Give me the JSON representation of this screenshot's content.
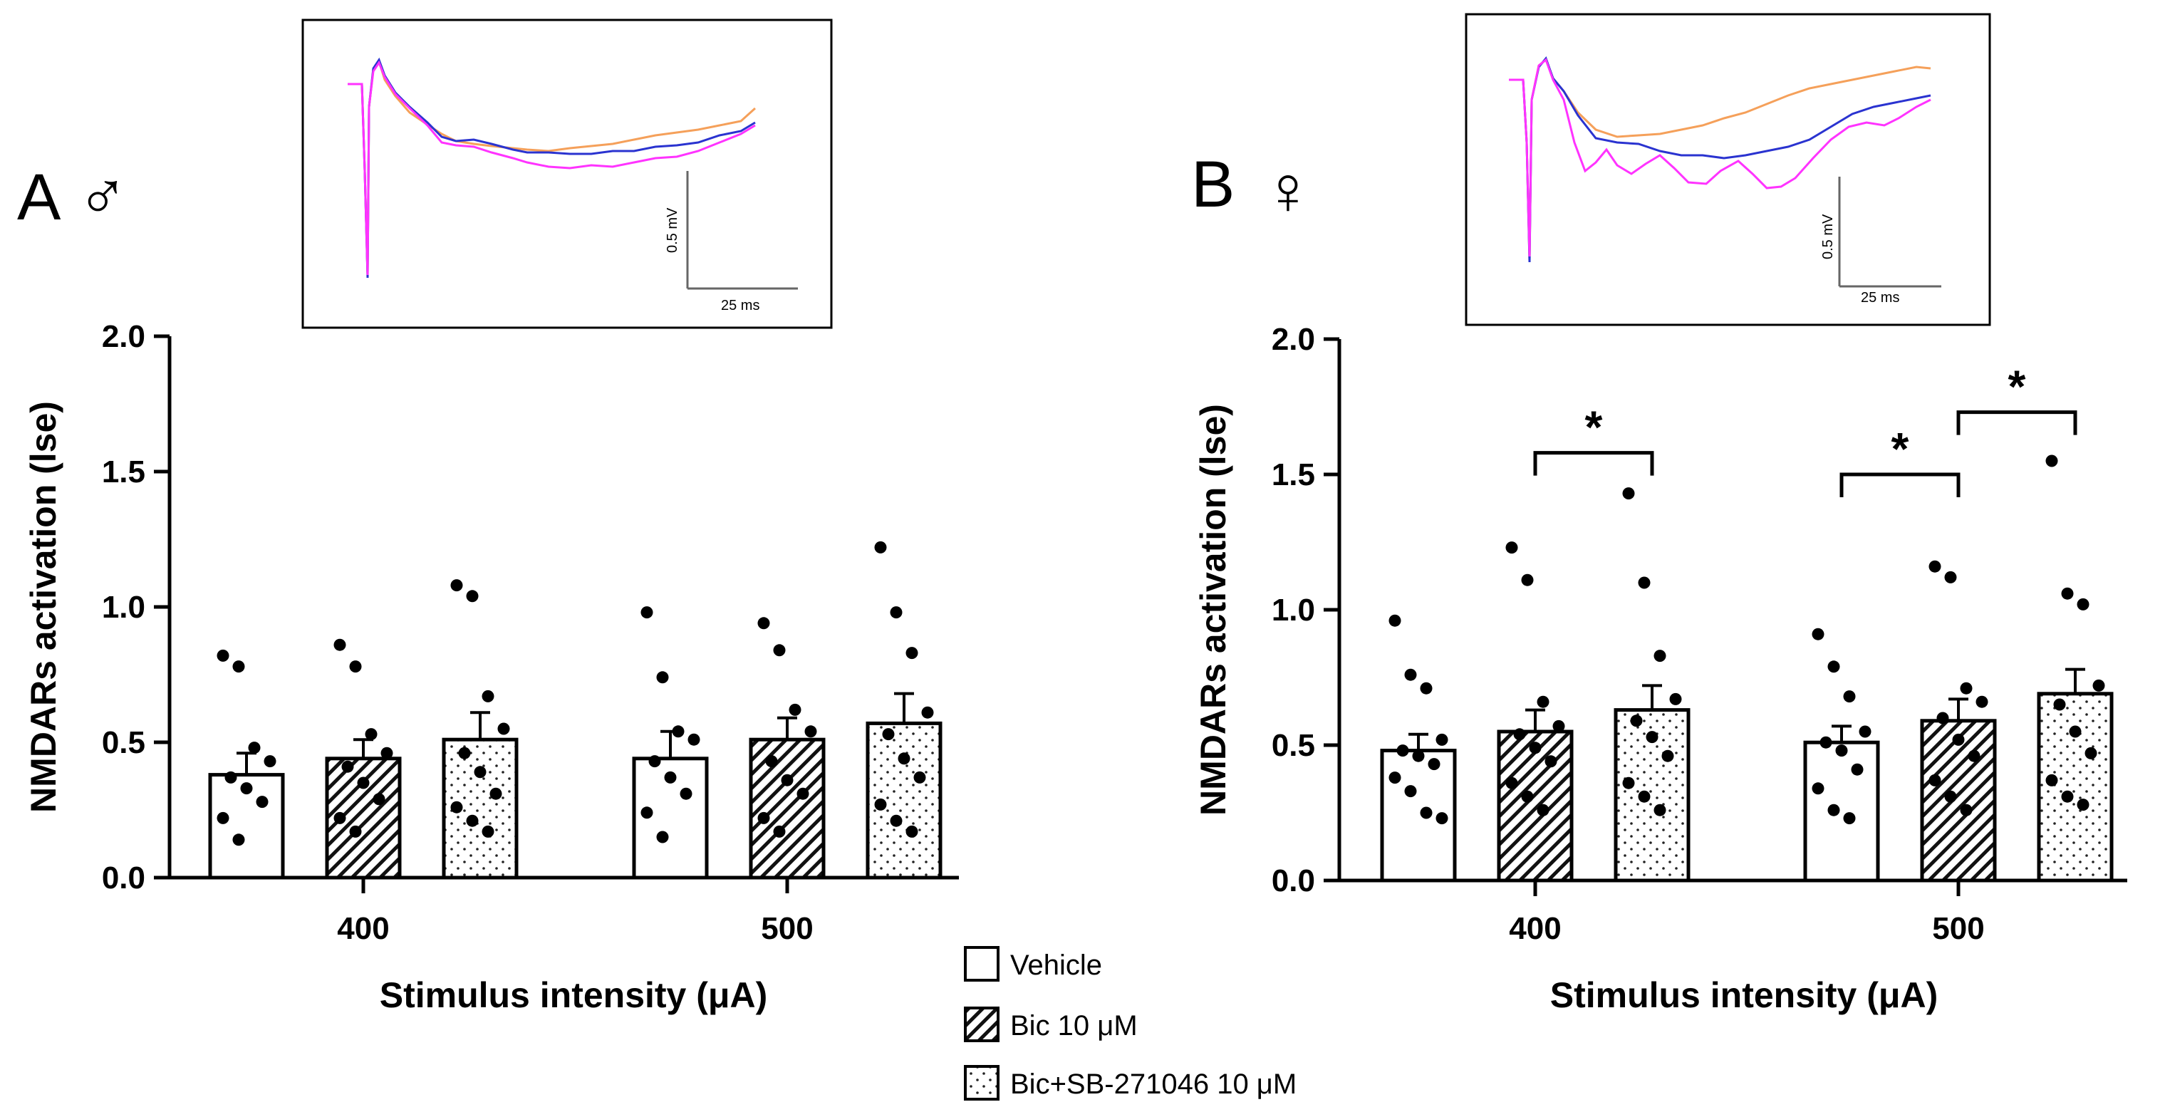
{
  "figure": {
    "legend": [
      {
        "label": "Vehicle",
        "pattern": "none"
      },
      {
        "label": "Bic 10 μM",
        "pattern": "hatch"
      },
      {
        "label": "Bic+SB-271046 10 μM",
        "pattern": "dots"
      }
    ],
    "trace_colors": {
      "vehicle": "#f5a05a",
      "bic": "#2a33d0",
      "bic_sb": "#ff33ff"
    }
  },
  "panels": [
    {
      "id": "A",
      "letter": "A",
      "symbol": "♂",
      "inset": {
        "scale_y_label": "0.5 mV",
        "scale_x_label": "25 ms"
      }
    },
    {
      "id": "B",
      "letter": "B",
      "symbol": "♀",
      "inset": {
        "scale_y_label": "0.5 mV",
        "scale_x_label": "25 ms"
      }
    }
  ],
  "chart_data": [
    {
      "type": "bar",
      "panel": "A",
      "title": "",
      "xlabel": "Stimulus intensity (μA)",
      "ylabel": "NMDARs activation (lse)",
      "ylim": [
        0,
        2.0
      ],
      "yticks": [
        "0.0",
        "0.5",
        "1.0",
        "1.5",
        "2.0"
      ],
      "categories": [
        "400",
        "500"
      ],
      "series": [
        {
          "name": "Vehicle",
          "values": [
            0.38,
            0.44
          ],
          "sem": [
            0.08,
            0.1
          ],
          "points": [
            [
              0.82,
              0.78,
              0.48,
              0.43,
              0.37,
              0.33,
              0.28,
              0.22,
              0.14
            ],
            [
              0.98,
              0.74,
              0.54,
              0.51,
              0.43,
              0.37,
              0.31,
              0.24,
              0.15
            ]
          ]
        },
        {
          "name": "Bic 10 μM",
          "values": [
            0.44,
            0.51
          ],
          "sem": [
            0.07,
            0.08
          ],
          "points": [
            [
              0.86,
              0.78,
              0.53,
              0.46,
              0.41,
              0.35,
              0.29,
              0.22,
              0.17
            ],
            [
              0.94,
              0.84,
              0.62,
              0.54,
              0.43,
              0.36,
              0.31,
              0.22,
              0.17
            ]
          ]
        },
        {
          "name": "Bic+SB-271046 10 μM",
          "values": [
            0.51,
            0.57
          ],
          "sem": [
            0.1,
            0.11
          ],
          "points": [
            [
              1.08,
              1.04,
              0.67,
              0.55,
              0.46,
              0.39,
              0.31,
              0.26,
              0.21,
              0.17
            ],
            [
              1.22,
              0.98,
              0.83,
              0.61,
              0.53,
              0.44,
              0.37,
              0.27,
              0.21,
              0.17
            ]
          ]
        }
      ],
      "significance": []
    },
    {
      "type": "bar",
      "panel": "B",
      "title": "",
      "xlabel": "Stimulus intensity (μA)",
      "ylabel": "NMDARs activation (lse)",
      "ylim": [
        0,
        2.0
      ],
      "yticks": [
        "0.0",
        "0.5",
        "1.0",
        "1.5",
        "2.0"
      ],
      "categories": [
        "400",
        "500"
      ],
      "series": [
        {
          "name": "Vehicle",
          "values": [
            0.48,
            0.51
          ],
          "sem": [
            0.06,
            0.06
          ],
          "points": [
            [
              0.96,
              0.76,
              0.71,
              0.52,
              0.48,
              0.46,
              0.43,
              0.38,
              0.33,
              0.25,
              0.23
            ],
            [
              0.91,
              0.79,
              0.68,
              0.55,
              0.51,
              0.48,
              0.41,
              0.34,
              0.26,
              0.23
            ]
          ]
        },
        {
          "name": "Bic 10 μM",
          "values": [
            0.55,
            0.59
          ],
          "sem": [
            0.08,
            0.08
          ],
          "points": [
            [
              1.23,
              1.11,
              0.66,
              0.57,
              0.54,
              0.49,
              0.44,
              0.36,
              0.31,
              0.26
            ],
            [
              1.16,
              1.12,
              0.71,
              0.66,
              0.6,
              0.52,
              0.46,
              0.37,
              0.31,
              0.26
            ]
          ]
        },
        {
          "name": "Bic+SB-271046 10 μM",
          "values": [
            0.63,
            0.69
          ],
          "sem": [
            0.09,
            0.09
          ],
          "points": [
            [
              1.43,
              1.1,
              0.83,
              0.67,
              0.59,
              0.53,
              0.46,
              0.36,
              0.31,
              0.26
            ],
            [
              1.55,
              1.06,
              1.02,
              0.72,
              0.65,
              0.55,
              0.47,
              0.37,
              0.31,
              0.28
            ]
          ]
        }
      ],
      "significance": [
        {
          "label": "*",
          "category": 0,
          "from_series": 1,
          "to_series": 2,
          "y": 1.58
        },
        {
          "label": "*",
          "category": 1,
          "from_series": 0,
          "to_series": 1,
          "y": 1.5
        },
        {
          "label": "*",
          "category": 1,
          "from_series": 1,
          "to_series": 2,
          "y": 1.73
        }
      ]
    }
  ]
}
